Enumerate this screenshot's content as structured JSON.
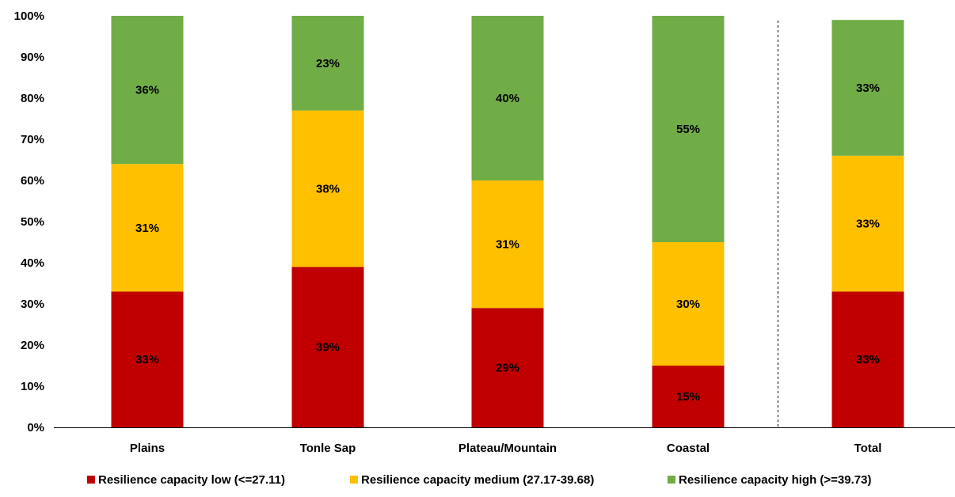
{
  "chart_data": {
    "type": "bar",
    "stacked": true,
    "categories": [
      "Plains",
      "Tonle Sap",
      "Plateau/Mountain",
      "Coastal",
      "Total"
    ],
    "series": [
      {
        "name": "Resilience capacity low (<=27.11)",
        "color": "#c00000",
        "values": [
          33,
          39,
          29,
          15,
          33
        ],
        "labels": [
          "33%",
          "39%",
          "29%",
          "15%",
          "33%"
        ]
      },
      {
        "name": "Resilience capacity medium (27.17-39.68)",
        "color": "#ffc000",
        "values": [
          31,
          38,
          31,
          30,
          33
        ],
        "labels": [
          "31%",
          "38%",
          "31%",
          "30%",
          "33%"
        ]
      },
      {
        "name": "Resilience capacity high (>=39.73)",
        "color": "#70ad47",
        "values": [
          36,
          23,
          40,
          55,
          33
        ],
        "labels": [
          "36%",
          "23%",
          "40%",
          "55%",
          "33%"
        ]
      }
    ],
    "ylim": [
      0,
      100
    ],
    "yticks": [
      "0%",
      "10%",
      "20%",
      "30%",
      "40%",
      "50%",
      "60%",
      "70%",
      "80%",
      "90%",
      "100%"
    ],
    "legend": "bottom",
    "grid": false,
    "separator_before": "Total"
  }
}
